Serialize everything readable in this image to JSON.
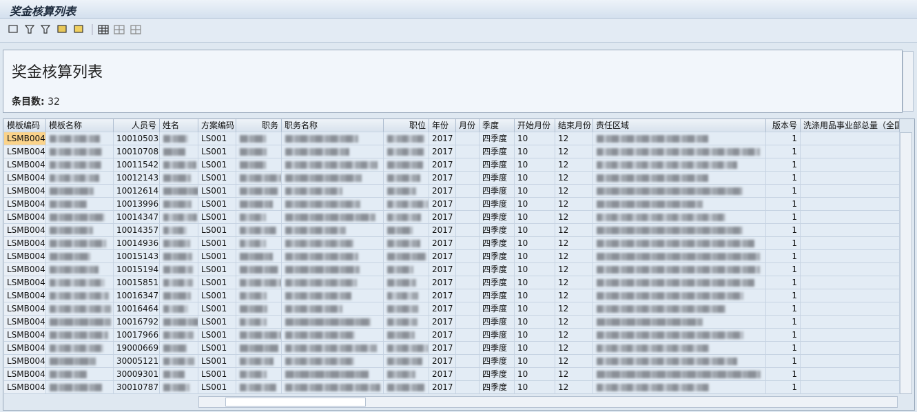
{
  "window": {
    "title": "奖金核算列表"
  },
  "header": {
    "title": "奖金核算列表",
    "count_label": "条目数:",
    "count": 32
  },
  "table": {
    "columns": [
      "模板编码",
      "模板名称",
      "人员号",
      "姓名",
      "方案编码",
      "职务",
      "职务名称",
      "职位",
      "年份",
      "月份",
      "季度",
      "开始月份",
      "结束月份",
      "责任区域",
      "版本号",
      "洗涤用品事业部总量（全国"
    ],
    "rows": [
      {
        "template": "LSMB004",
        "person": "10010503",
        "scheme": "LS001",
        "year": "2017",
        "quarter": "四季度",
        "start": "10",
        "end": "12",
        "version": "1"
      },
      {
        "template": "LSMB004",
        "person": "10010708",
        "scheme": "LS001",
        "year": "2017",
        "quarter": "四季度",
        "start": "10",
        "end": "12",
        "version": "1"
      },
      {
        "template": "LSMB004",
        "person": "10011542",
        "scheme": "LS001",
        "year": "2017",
        "quarter": "四季度",
        "start": "10",
        "end": "12",
        "version": "1"
      },
      {
        "template": "LSMB004",
        "person": "10012143",
        "scheme": "LS001",
        "year": "2017",
        "quarter": "四季度",
        "start": "10",
        "end": "12",
        "version": "1"
      },
      {
        "template": "LSMB004",
        "person": "10012614",
        "scheme": "LS001",
        "year": "2017",
        "quarter": "四季度",
        "start": "10",
        "end": "12",
        "version": "1"
      },
      {
        "template": "LSMB004",
        "person": "10013996",
        "scheme": "LS001",
        "year": "2017",
        "quarter": "四季度",
        "start": "10",
        "end": "12",
        "version": "1"
      },
      {
        "template": "LSMB004",
        "person": "10014347",
        "scheme": "LS001",
        "year": "2017",
        "quarter": "四季度",
        "start": "10",
        "end": "12",
        "version": "1"
      },
      {
        "template": "LSMB004",
        "person": "10014357",
        "scheme": "LS001",
        "year": "2017",
        "quarter": "四季度",
        "start": "10",
        "end": "12",
        "version": "1"
      },
      {
        "template": "LSMB004",
        "person": "10014936",
        "scheme": "LS001",
        "year": "2017",
        "quarter": "四季度",
        "start": "10",
        "end": "12",
        "version": "1"
      },
      {
        "template": "LSMB004",
        "person": "10015143",
        "scheme": "LS001",
        "year": "2017",
        "quarter": "四季度",
        "start": "10",
        "end": "12",
        "version": "1"
      },
      {
        "template": "LSMB004",
        "person": "10015194",
        "scheme": "LS001",
        "year": "2017",
        "quarter": "四季度",
        "start": "10",
        "end": "12",
        "version": "1"
      },
      {
        "template": "LSMB004",
        "person": "10015851",
        "scheme": "LS001",
        "year": "2017",
        "quarter": "四季度",
        "start": "10",
        "end": "12",
        "version": "1"
      },
      {
        "template": "LSMB004",
        "person": "10016347",
        "scheme": "LS001",
        "year": "2017",
        "quarter": "四季度",
        "start": "10",
        "end": "12",
        "version": "1"
      },
      {
        "template": "LSMB004",
        "person": "10016464",
        "scheme": "LS001",
        "year": "2017",
        "quarter": "四季度",
        "start": "10",
        "end": "12",
        "version": "1"
      },
      {
        "template": "LSMB004",
        "person": "10016792",
        "scheme": "LS001",
        "year": "2017",
        "quarter": "四季度",
        "start": "10",
        "end": "12",
        "version": "1"
      },
      {
        "template": "LSMB004",
        "person": "10017966",
        "scheme": "LS001",
        "year": "2017",
        "quarter": "四季度",
        "start": "10",
        "end": "12",
        "version": "1"
      },
      {
        "template": "LSMB004",
        "person": "19000669",
        "scheme": "LS001",
        "year": "2017",
        "quarter": "四季度",
        "start": "10",
        "end": "12",
        "version": "1"
      },
      {
        "template": "LSMB004",
        "person": "30005121",
        "scheme": "LS001",
        "year": "2017",
        "quarter": "四季度",
        "start": "10",
        "end": "12",
        "version": "1"
      },
      {
        "template": "LSMB004",
        "person": "30009301",
        "scheme": "LS001",
        "year": "2017",
        "quarter": "四季度",
        "start": "10",
        "end": "12",
        "version": "1"
      },
      {
        "template": "LSMB004",
        "person": "30010787",
        "scheme": "LS001",
        "year": "2017",
        "quarter": "四季度",
        "start": "10",
        "end": "12",
        "version": "1"
      }
    ]
  }
}
